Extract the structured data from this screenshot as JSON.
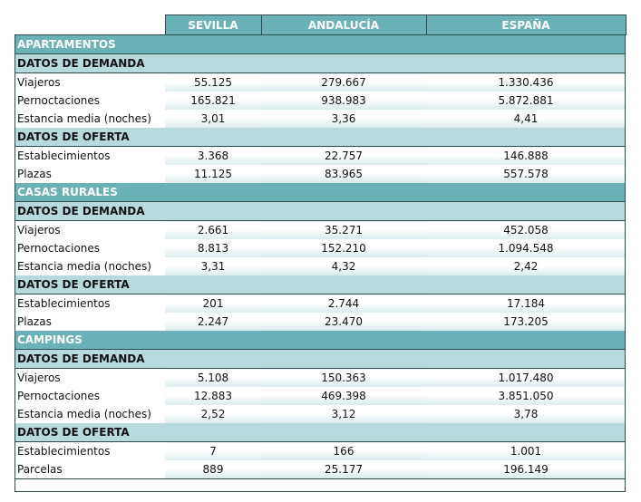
{
  "columns": [
    "",
    "SEVILLA",
    "ANDALUCÍA",
    "ESPAÑA"
  ],
  "sections": [
    {
      "title": "APARTAMENTOS",
      "groups": [
        {
          "title": "DATOS DE DEMANDA",
          "rows": [
            {
              "label": "Viajeros",
              "values": [
                "55.125",
                "279.667",
                "1.330.436"
              ]
            },
            {
              "label": "Pernoctaciones",
              "values": [
                "165.821",
                "938.983",
                "5.872.881"
              ]
            },
            {
              "label": "Estancia media (noches)",
              "values": [
                "3,01",
                "3,36",
                "4,41"
              ]
            }
          ]
        },
        {
          "title": "DATOS DE OFERTA",
          "rows": [
            {
              "label": "Establecimientos",
              "values": [
                "3.368",
                "22.757",
                "146.888"
              ]
            },
            {
              "label": "Plazas",
              "values": [
                "11.125",
                "83.965",
                "557.578"
              ]
            }
          ]
        }
      ]
    },
    {
      "title": "CASAS RURALES",
      "groups": [
        {
          "title": "DATOS DE DEMANDA",
          "rows": [
            {
              "label": "Viajeros",
              "values": [
                "2.661",
                "35.271",
                "452.058"
              ]
            },
            {
              "label": "Pernoctaciones",
              "values": [
                "8.813",
                "152.210",
                "1.094.548"
              ]
            },
            {
              "label": "Estancia media (noches)",
              "values": [
                "3,31",
                "4,32",
                "2,42"
              ]
            }
          ]
        },
        {
          "title": "DATOS DE OFERTA",
          "rows": [
            {
              "label": "Establecimientos",
              "values": [
                "201",
                "2.744",
                "17.184"
              ]
            },
            {
              "label": "Plazas",
              "values": [
                "2.247",
                "23.470",
                "173.205"
              ]
            }
          ]
        }
      ]
    },
    {
      "title": "CAMPINGS",
      "groups": [
        {
          "title": "DATOS DE DEMANDA",
          "rows": [
            {
              "label": "Viajeros",
              "values": [
                "5.108",
                "150.363",
                "1.017.480"
              ]
            },
            {
              "label": "Pernoctaciones",
              "values": [
                "12.883",
                "469.398",
                "3.851.050"
              ]
            },
            {
              "label": "Estancia media (noches)",
              "values": [
                "2,52",
                "3,12",
                "3,78"
              ]
            }
          ]
        },
        {
          "title": "DATOS DE OFERTA",
          "rows": [
            {
              "label": "Establecimientos",
              "values": [
                "7",
                "166",
                "1.001"
              ]
            },
            {
              "label": "Parcelas",
              "values": [
                "889",
                "25.177",
                "196.149"
              ]
            }
          ]
        }
      ]
    }
  ]
}
